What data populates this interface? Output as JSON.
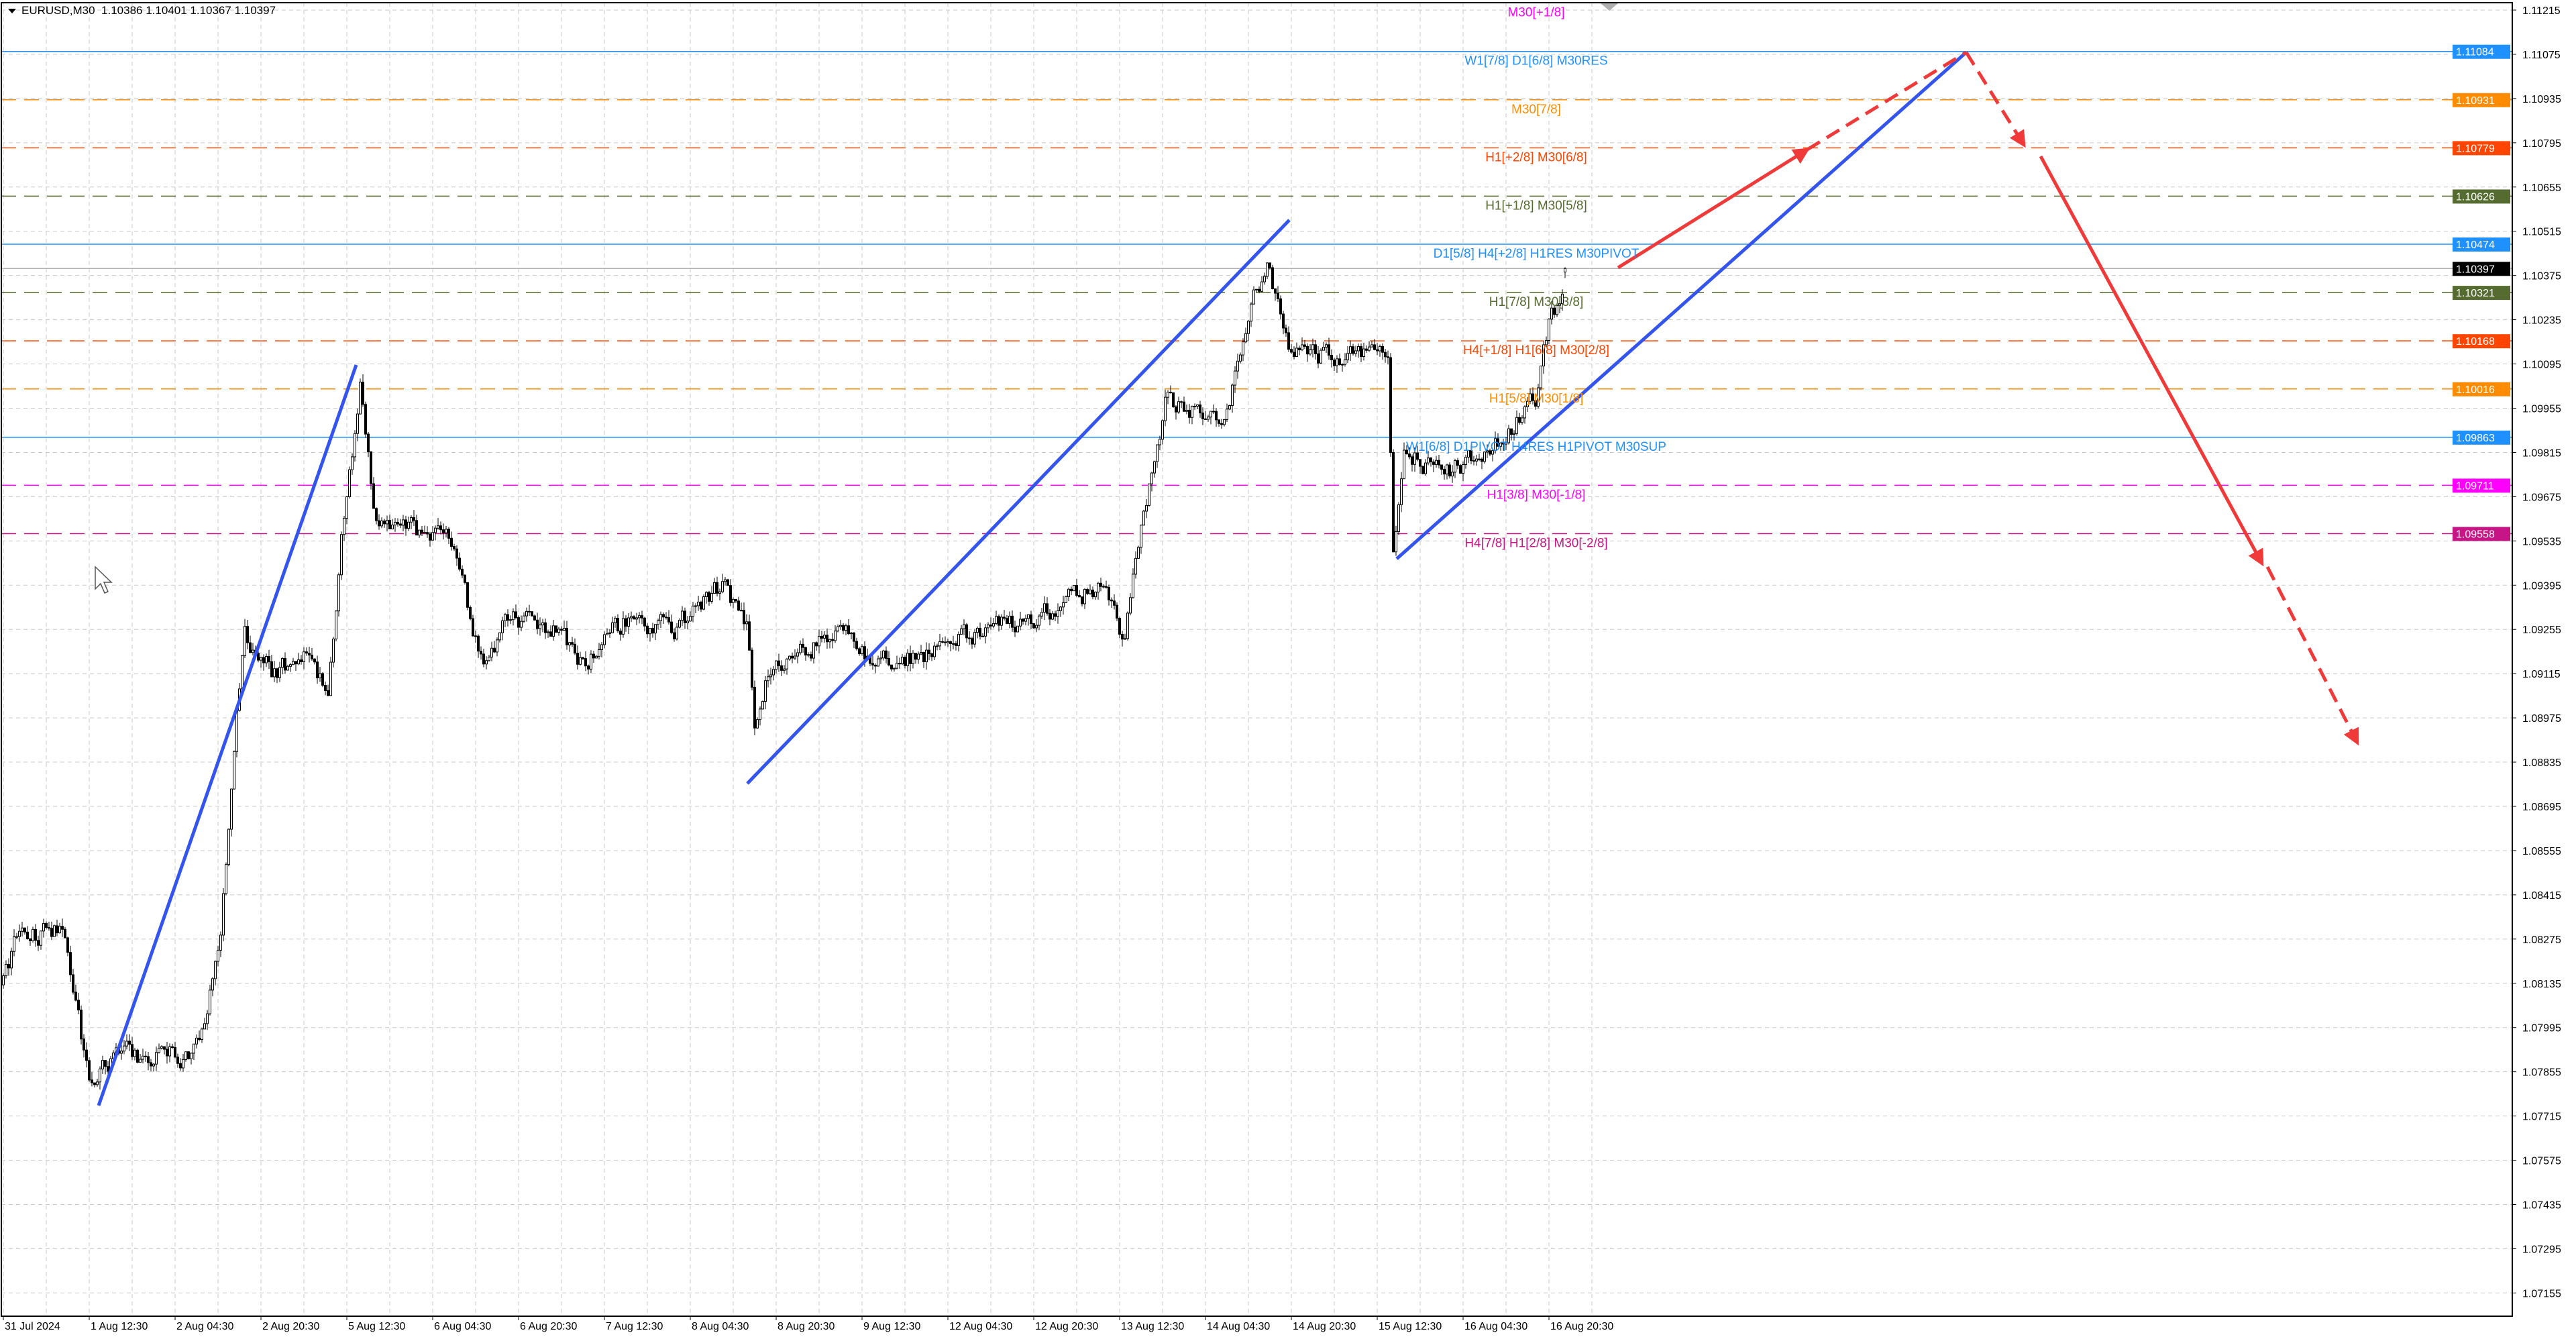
{
  "header": {
    "symbol": "EURUSD,M30",
    "ohlc": "1.10386 1.10401 1.10367 1.10397"
  },
  "colors": {
    "trendline": "#3355ee",
    "forecast": "#f03a3a",
    "bull_candle": "#ffffff",
    "bear_candle": "#000000",
    "grid": "#c8c8c8"
  },
  "chart_data": {
    "type": "candlestick",
    "symbol": "EURUSD",
    "timeframe": "M30",
    "last_bar": {
      "open": 1.10386,
      "high": 1.10401,
      "low": 1.10367,
      "close": 1.10397
    },
    "current_price": 1.10397,
    "ylim": [
      1.071,
      1.1125
    ],
    "grid": true,
    "y_ticks": [
      "1.11215",
      "1.11075",
      "1.10935",
      "1.10795",
      "1.10655",
      "1.10515",
      "1.10375",
      "1.10235",
      "1.10095",
      "1.09955",
      "1.09815",
      "1.09675",
      "1.09535",
      "1.09395",
      "1.09255",
      "1.09115",
      "1.08975",
      "1.08835",
      "1.08695",
      "1.08555",
      "1.08415",
      "1.08275",
      "1.08135",
      "1.07995",
      "1.07855",
      "1.07715",
      "1.07575",
      "1.07435",
      "1.07295",
      "1.07155"
    ],
    "x_ticks": [
      {
        "label": "31 Jul 2024",
        "time": "2024-07-31 20:30"
      },
      {
        "label": "1 Aug 12:30",
        "time": "2024-08-01 12:30"
      },
      {
        "label": "2 Aug 04:30",
        "time": "2024-08-02 04:30"
      },
      {
        "label": "2 Aug 20:30",
        "time": "2024-08-02 20:30"
      },
      {
        "label": "5 Aug 12:30",
        "time": "2024-08-05 12:30"
      },
      {
        "label": "6 Aug 04:30",
        "time": "2024-08-06 04:30"
      },
      {
        "label": "6 Aug 20:30",
        "time": "2024-08-06 20:30"
      },
      {
        "label": "7 Aug 12:30",
        "time": "2024-08-07 12:30"
      },
      {
        "label": "8 Aug 04:30",
        "time": "2024-08-08 04:30"
      },
      {
        "label": "8 Aug 20:30",
        "time": "2024-08-08 20:30"
      },
      {
        "label": "9 Aug 12:30",
        "time": "2024-08-09 12:30"
      },
      {
        "label": "12 Aug 04:30",
        "time": "2024-08-12 04:30"
      },
      {
        "label": "12 Aug 20:30",
        "time": "2024-08-12 20:30"
      },
      {
        "label": "13 Aug 12:30",
        "time": "2024-08-13 12:30"
      },
      {
        "label": "14 Aug 04:30",
        "time": "2024-08-14 04:30"
      },
      {
        "label": "14 Aug 20:30",
        "time": "2024-08-14 20:30"
      },
      {
        "label": "15 Aug 12:30",
        "time": "2024-08-15 12:30"
      },
      {
        "label": "16 Aug 04:30",
        "time": "2024-08-16 04:30"
      },
      {
        "label": "16 Aug 20:30",
        "time": "2024-08-16 20:30"
      }
    ],
    "close_path": [
      [
        "2024-07-31 20:30",
        1.0813
      ],
      [
        "2024-07-31 23:00",
        1.0828
      ],
      [
        "2024-08-01 07:30",
        1.0831
      ],
      [
        "2024-08-01 09:30",
        1.0813
      ],
      [
        "2024-08-01 12:30",
        1.0782
      ],
      [
        "2024-08-01 17:30",
        1.0792
      ],
      [
        "2024-08-01 23:30",
        1.079
      ],
      [
        "2024-08-02 08:30",
        1.0792
      ],
      [
        "2024-08-02 13:00",
        1.0828
      ],
      [
        "2024-08-02 16:00",
        1.0896
      ],
      [
        "2024-08-02 17:30",
        1.0922
      ],
      [
        "2024-08-02 22:30",
        1.0912
      ],
      [
        "2024-08-05 04:30",
        1.0917
      ],
      [
        "2024-08-05 09:00",
        1.0906
      ],
      [
        "2024-08-05 11:30",
        1.0953
      ],
      [
        "2024-08-05 15:00",
        1.1003
      ],
      [
        "2024-08-05 18:00",
        1.0958
      ],
      [
        "2024-08-06 03:30",
        1.0956
      ],
      [
        "2024-08-06 08:00",
        1.0953
      ],
      [
        "2024-08-06 14:00",
        1.0912
      ],
      [
        "2024-08-06 18:30",
        1.093
      ],
      [
        "2024-08-07 04:00",
        1.0925
      ],
      [
        "2024-08-07 08:30",
        1.0914
      ],
      [
        "2024-08-07 17:30",
        1.093
      ],
      [
        "2024-08-08 01:30",
        1.0925
      ],
      [
        "2024-08-08 10:30",
        1.094
      ],
      [
        "2024-08-08 15:00",
        1.0927
      ],
      [
        "2024-08-08 16:30",
        1.0896
      ],
      [
        "2024-08-08 19:30",
        1.0914
      ],
      [
        "2024-08-09 08:00",
        1.0925
      ],
      [
        "2024-08-09 14:00",
        1.0917
      ],
      [
        "2024-08-09 23:00",
        1.0917
      ],
      [
        "2024-08-12 11:30",
        1.0925
      ],
      [
        "2024-08-12 23:30",
        1.0932
      ],
      [
        "2024-08-13 09:00",
        1.094
      ],
      [
        "2024-08-13 13:30",
        1.0922
      ],
      [
        "2024-08-13 16:30",
        1.0958
      ],
      [
        "2024-08-13 21:00",
        1.0997
      ],
      [
        "2024-08-14 08:00",
        1.0992
      ],
      [
        "2024-08-14 12:30",
        1.1026
      ],
      [
        "2024-08-14 16:00",
        1.1041
      ],
      [
        "2024-08-14 20:00",
        1.1015
      ],
      [
        "2024-08-15 04:00",
        1.1012
      ],
      [
        "2024-08-15 14:30",
        1.1012
      ],
      [
        "2024-08-15 15:30",
        1.0953
      ],
      [
        "2024-08-15 17:30",
        1.0984
      ],
      [
        "2024-08-16 01:00",
        1.0974
      ],
      [
        "2024-08-16 10:30",
        1.0984
      ],
      [
        "2024-08-16 18:00",
        1.0999
      ],
      [
        "2024-08-16 20:30",
        1.1021
      ],
      [
        "2024-08-16 22:30",
        1.1031
      ],
      [
        "2024-08-16 23:30",
        1.10397
      ]
    ],
    "levels": [
      {
        "price": 1.11237,
        "label": "M30[+1/8]",
        "color": "#ff00ff",
        "style": "dash",
        "box": ""
      },
      {
        "price": 1.11084,
        "label": "W1[7/8] D1[6/8] M30RES",
        "color": "#1e90ff",
        "style": "solid",
        "box": "1.11084"
      },
      {
        "price": 1.10931,
        "label": "M30[7/8]",
        "color": "#ff8c00",
        "style": "dash",
        "box": "1.10931"
      },
      {
        "price": 1.10779,
        "label": "H1[+2/8] M30[6/8]",
        "color": "#ff4500",
        "style": "dash",
        "box": "1.10779"
      },
      {
        "price": 1.10626,
        "label": "H1[+1/8] M30[5/8]",
        "color": "#556b2f",
        "style": "dash",
        "box": "1.10626"
      },
      {
        "price": 1.10474,
        "label": "D1[5/8] H4[+2/8] H1RES M30PIVOT",
        "color": "#1e90ff",
        "style": "solid",
        "box": "1.10474"
      },
      {
        "price": 1.10321,
        "label": "H1[7/8] M30[3/8]",
        "color": "#556b2f",
        "style": "dash",
        "box": "1.10321"
      },
      {
        "price": 1.10168,
        "label": "H4[+1/8] H1[6/8] M30[2/8]",
        "color": "#ff4500",
        "style": "dash",
        "box": "1.10168"
      },
      {
        "price": 1.10016,
        "label": "H1[5/8] M30[1/8]",
        "color": "#ff8c00",
        "style": "dash",
        "box": "1.10016"
      },
      {
        "price": 1.09863,
        "label": "W1[6/8] D1PIVOT H4RES H1PIVOT M30SUP",
        "color": "#1e90ff",
        "style": "solid",
        "box": "1.09863"
      },
      {
        "price": 1.09711,
        "label": "H1[3/8] M30[-1/8]",
        "color": "#ff00ff",
        "style": "dash",
        "box": "1.09711"
      },
      {
        "price": 1.09558,
        "label": "H4[7/8] H1[2/8] M30[-2/8]",
        "color": "#c71585",
        "style": "dash",
        "box": "1.09558"
      }
    ],
    "current_price_label": "1.10397"
  }
}
